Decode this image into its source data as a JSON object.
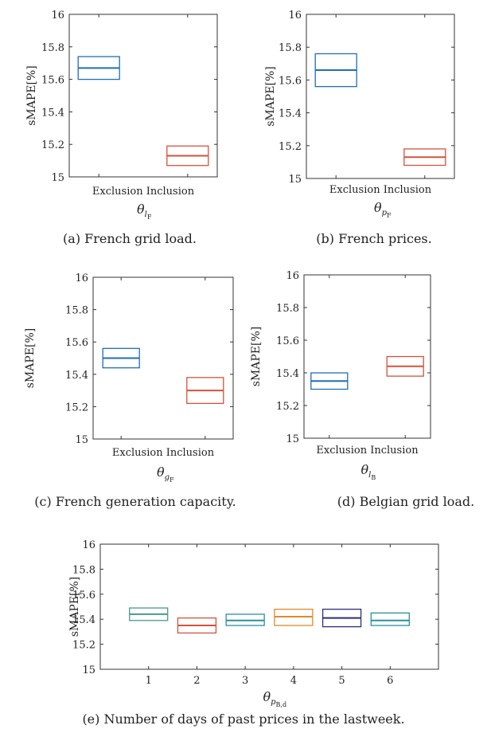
{
  "chart_data": [
    {
      "type": "box",
      "caption": "(a) French grid load.",
      "ylabel": "sMAPE[%]",
      "xlabel": {
        "base": "θ",
        "sub": "l",
        "subsub": "F"
      },
      "ylim": [
        15,
        16
      ],
      "yticks": [
        15,
        15.2,
        15.4,
        15.6,
        15.8,
        16
      ],
      "categories": [
        "Exclusion",
        "Inclusion"
      ],
      "boxes": [
        {
          "category": "Exclusion",
          "q1": 15.6,
          "median": 15.67,
          "q3": 15.74,
          "color": "#1f6fb4"
        },
        {
          "category": "Inclusion",
          "q1": 15.07,
          "median": 15.13,
          "q3": 15.19,
          "color": "#d4533b"
        }
      ]
    },
    {
      "type": "box",
      "caption": "(b) French prices.",
      "ylabel": "sMAPE[%]",
      "xlabel": {
        "base": "θ",
        "sub": "p",
        "subsub": "F"
      },
      "ylim": [
        15,
        16
      ],
      "yticks": [
        15,
        15.2,
        15.4,
        15.6,
        15.8,
        16
      ],
      "categories": [
        "Exclusion",
        "Inclusion"
      ],
      "boxes": [
        {
          "category": "Exclusion",
          "q1": 15.56,
          "median": 15.66,
          "q3": 15.76,
          "color": "#1f6fb4"
        },
        {
          "category": "Inclusion",
          "q1": 15.08,
          "median": 15.13,
          "q3": 15.18,
          "color": "#d4533b"
        }
      ]
    },
    {
      "type": "box",
      "caption": "(c) French generation capacity.",
      "ylabel": "sMAPE[%]",
      "xlabel": {
        "base": "θ",
        "sub": "g",
        "subsub": "F"
      },
      "ylim": [
        15,
        16
      ],
      "yticks": [
        15,
        15.2,
        15.4,
        15.6,
        15.8,
        16
      ],
      "categories": [
        "Exclusion",
        "Inclusion"
      ],
      "boxes": [
        {
          "category": "Exclusion",
          "q1": 15.44,
          "median": 15.5,
          "q3": 15.56,
          "color": "#1f6fb4"
        },
        {
          "category": "Inclusion",
          "q1": 15.22,
          "median": 15.3,
          "q3": 15.38,
          "color": "#d4533b"
        }
      ]
    },
    {
      "type": "box",
      "caption": "(d) Belgian grid load.",
      "ylabel": "sMAPE[%]",
      "xlabel": {
        "base": "θ",
        "sub": "l",
        "subsub": "B"
      },
      "ylim": [
        15,
        16
      ],
      "yticks": [
        15,
        15.2,
        15.4,
        15.6,
        15.8,
        16
      ],
      "categories": [
        "Exclusion",
        "Inclusion"
      ],
      "boxes": [
        {
          "category": "Exclusion",
          "q1": 15.3,
          "median": 15.35,
          "q3": 15.4,
          "color": "#1f6fb4"
        },
        {
          "category": "Inclusion",
          "q1": 15.38,
          "median": 15.44,
          "q3": 15.5,
          "color": "#d4533b"
        }
      ]
    },
    {
      "type": "box",
      "caption": "(e) Number of days of past prices in the lastweek.",
      "ylabel": "sMAPE[%]",
      "xlabel": {
        "base": "θ",
        "sub": "p",
        "subsub": "B,d"
      },
      "ylim": [
        15,
        16
      ],
      "yticks": [
        15,
        15.2,
        15.4,
        15.6,
        15.8,
        16
      ],
      "categories": [
        "1",
        "2",
        "3",
        "4",
        "5",
        "6"
      ],
      "boxes": [
        {
          "category": "1",
          "q1": 15.39,
          "median": 15.44,
          "q3": 15.49,
          "color": "#4a9a8a"
        },
        {
          "category": "2",
          "q1": 15.29,
          "median": 15.35,
          "q3": 15.41,
          "color": "#d4533b"
        },
        {
          "category": "3",
          "q1": 15.35,
          "median": 15.39,
          "q3": 15.44,
          "color": "#2a8fa0"
        },
        {
          "category": "4",
          "q1": 15.35,
          "median": 15.42,
          "q3": 15.48,
          "color": "#e08a2a"
        },
        {
          "category": "5",
          "q1": 15.34,
          "median": 15.41,
          "q3": 15.48,
          "color": "#2b2f7a"
        },
        {
          "category": "6",
          "q1": 15.35,
          "median": 15.39,
          "q3": 15.45,
          "color": "#2a8fa0"
        }
      ]
    }
  ]
}
